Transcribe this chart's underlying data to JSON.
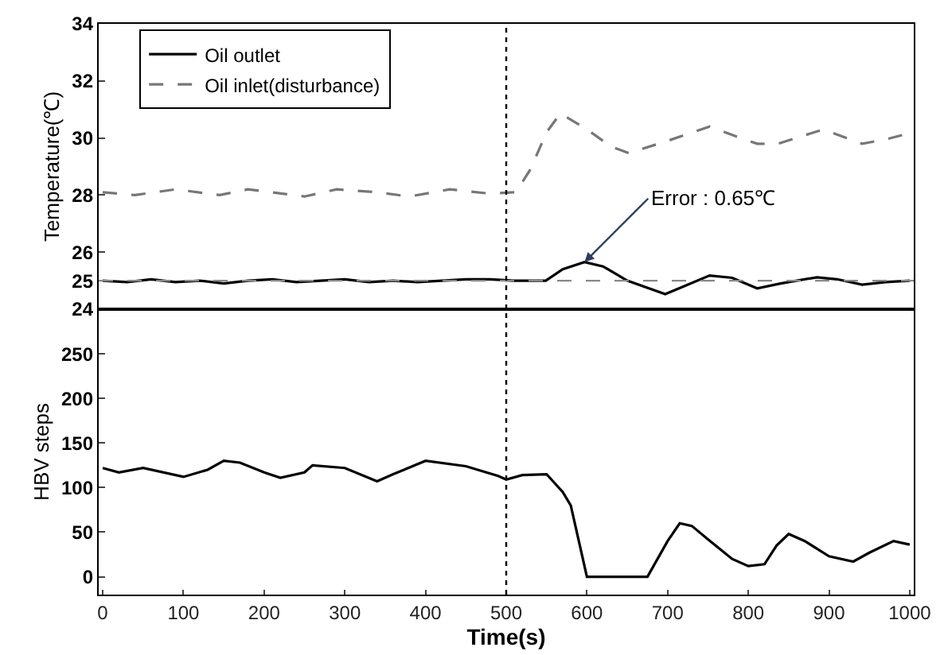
{
  "chart_data": [
    {
      "type": "line",
      "ylabel": "Temperature(℃)",
      "xlim": [
        -5,
        1005
      ],
      "ylim": [
        24,
        34
      ],
      "yticks": [
        24,
        25,
        26,
        28,
        30,
        32,
        34
      ],
      "tick_labels": "y",
      "grid": false,
      "legend": "top left",
      "series": [
        {
          "name": "Oil outlet",
          "color": "#000000",
          "line_style": "solid",
          "x": [
            0,
            30,
            60,
            90,
            120,
            150,
            180,
            210,
            240,
            270,
            300,
            330,
            360,
            390,
            420,
            450,
            480,
            510,
            549,
            570,
            597,
            620,
            650,
            697,
            720,
            752,
            780,
            811,
            840,
            885,
            910,
            941,
            970,
            1000
          ],
          "values": [
            25.0,
            24.95,
            25.05,
            24.95,
            25.0,
            24.9,
            25.0,
            25.05,
            24.95,
            25.0,
            25.05,
            24.95,
            25.0,
            24.95,
            25.0,
            25.05,
            25.05,
            25.0,
            25.0,
            25.4,
            25.65,
            25.5,
            25.0,
            24.53,
            24.8,
            25.18,
            25.1,
            24.73,
            24.9,
            25.12,
            25.05,
            24.86,
            24.95,
            25.0
          ]
        },
        {
          "name": "Oil inlet(disturbance)",
          "color": "#777777",
          "line_style": "dashed",
          "x": [
            0,
            40,
            90,
            145,
            180,
            250,
            290,
            340,
            380,
            430,
            480,
            512,
            530,
            550,
            567,
            600,
            630,
            652,
            700,
            752,
            790,
            811,
            837,
            893,
            941,
            970,
            1004
          ],
          "values": [
            28.1,
            28.0,
            28.2,
            28.0,
            28.2,
            27.95,
            28.2,
            28.1,
            27.95,
            28.2,
            28.05,
            28.1,
            28.9,
            30.2,
            30.86,
            30.3,
            29.7,
            29.47,
            29.9,
            30.4,
            30.0,
            29.8,
            29.8,
            30.3,
            29.8,
            29.95,
            30.2
          ]
        }
      ],
      "ref_lines": [
        {
          "axis": "y",
          "value": 25,
          "color": "#888888",
          "line_style": "dashed"
        },
        {
          "axis": "x",
          "value": 500,
          "color": "#000000",
          "line_style": "dotted"
        }
      ],
      "annotations": [
        {
          "text": "Error : 0.65℃",
          "x": 597,
          "y": 25.65
        }
      ]
    },
    {
      "type": "line",
      "xlabel": "Time(s)",
      "ylabel": "HBV steps",
      "xlim": [
        -5,
        1005
      ],
      "xticks": [
        0,
        100,
        200,
        300,
        400,
        500,
        600,
        700,
        800,
        900,
        1000
      ],
      "ylim": [
        -20,
        300
      ],
      "yticks": [
        0,
        50,
        100,
        150,
        200,
        250
      ],
      "grid": false,
      "legend": false,
      "series": [
        {
          "color": "#000000",
          "line_style": "solid",
          "x": [
            0,
            20,
            50,
            100,
            130,
            150,
            170,
            200,
            220,
            250,
            260,
            300,
            340,
            360,
            400,
            450,
            490,
            500,
            520,
            550,
            570,
            580,
            600,
            675,
            700,
            715,
            730,
            750,
            780,
            800,
            820,
            835,
            850,
            870,
            900,
            930,
            950,
            980,
            1000
          ],
          "values": [
            122,
            117,
            122,
            112,
            120,
            130,
            128,
            117,
            111,
            117,
            125,
            122,
            107,
            115,
            130,
            124,
            113,
            109,
            114,
            115,
            95,
            80,
            0,
            0,
            40,
            60,
            57,
            42,
            20,
            12,
            14,
            35,
            48,
            40,
            23,
            17,
            27,
            40,
            36
          ]
        }
      ],
      "ref_lines": [
        {
          "axis": "x",
          "value": 500,
          "color": "#000000",
          "line_style": "dotted"
        }
      ]
    }
  ]
}
